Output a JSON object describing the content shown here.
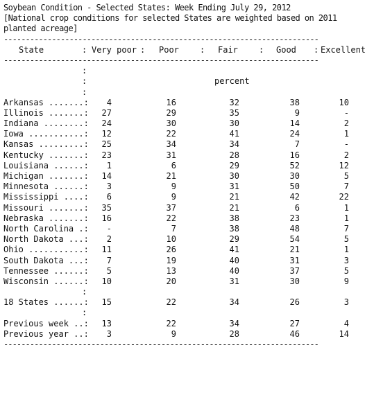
{
  "title": "Soybean Condition - Selected States: Week Ending July 29, 2012",
  "note_line1": "[National crop conditions for selected States are weighted based on 2011",
  "note_line2": "planted acreage]",
  "rule": "------------------------------------------------------------------------",
  "header": {
    "state": "State",
    "very_poor": "Very poor",
    "poor": "Poor",
    "fair": "Fair",
    "good": "Good",
    "excellent": "Excellent"
  },
  "unit": "percent",
  "rows": [
    {
      "state": "Arkansas .......:",
      "values": [
        "4",
        "16",
        "32",
        "38",
        "10"
      ]
    },
    {
      "state": "Illinois .......:",
      "values": [
        "27",
        "29",
        "35",
        "9",
        "-"
      ]
    },
    {
      "state": "Indiana ........:",
      "values": [
        "24",
        "30",
        "30",
        "14",
        "2"
      ]
    },
    {
      "state": "Iowa ...........:",
      "values": [
        "12",
        "22",
        "41",
        "24",
        "1"
      ]
    },
    {
      "state": "Kansas .........:",
      "values": [
        "25",
        "34",
        "34",
        "7",
        "-"
      ]
    },
    {
      "state": "Kentucky .......:",
      "values": [
        "23",
        "31",
        "28",
        "16",
        "2"
      ]
    },
    {
      "state": "Louisiana ......:",
      "values": [
        "1",
        "6",
        "29",
        "52",
        "12"
      ]
    },
    {
      "state": "Michigan .......:",
      "values": [
        "14",
        "21",
        "30",
        "30",
        "5"
      ]
    },
    {
      "state": "Minnesota ......:",
      "values": [
        "3",
        "9",
        "31",
        "50",
        "7"
      ]
    },
    {
      "state": "Mississippi ....:",
      "values": [
        "6",
        "9",
        "21",
        "42",
        "22"
      ]
    },
    {
      "state": "Missouri .......:",
      "values": [
        "35",
        "37",
        "21",
        "6",
        "1"
      ]
    },
    {
      "state": "Nebraska .......:",
      "values": [
        "16",
        "22",
        "38",
        "23",
        "1"
      ]
    },
    {
      "state": "North Carolina .:",
      "values": [
        "-",
        "7",
        "38",
        "48",
        "7"
      ]
    },
    {
      "state": "North Dakota ...:",
      "values": [
        "2",
        "10",
        "29",
        "54",
        "5"
      ]
    },
    {
      "state": "Ohio ...........:",
      "values": [
        "11",
        "26",
        "41",
        "21",
        "1"
      ]
    },
    {
      "state": "South Dakota ...:",
      "values": [
        "7",
        "19",
        "40",
        "31",
        "3"
      ]
    },
    {
      "state": "Tennessee ......:",
      "values": [
        "5",
        "13",
        "40",
        "37",
        "5"
      ]
    },
    {
      "state": "Wisconsin ......:",
      "values": [
        "10",
        "20",
        "31",
        "30",
        "9"
      ]
    }
  ],
  "total_row": {
    "state": "18 States ......:",
    "values": [
      "15",
      "22",
      "34",
      "26",
      "3"
    ]
  },
  "previous_week": {
    "state": "Previous week ..:",
    "values": [
      "13",
      "22",
      "34",
      "27",
      "4"
    ]
  },
  "previous_year": {
    "state": "Previous year ..:",
    "values": [
      "3",
      "9",
      "28",
      "46",
      "14"
    ]
  },
  "colon": ":"
}
